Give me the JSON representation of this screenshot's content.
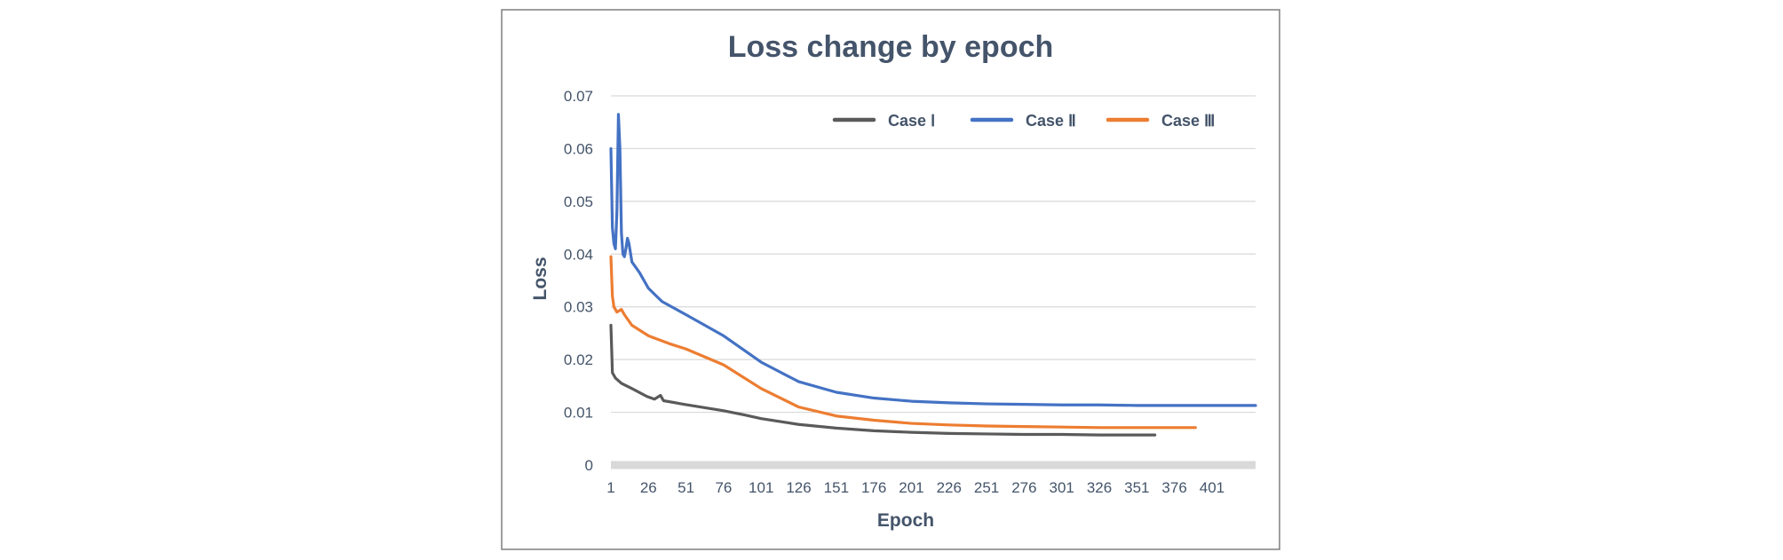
{
  "chart_data": {
    "type": "line",
    "title": "Loss change by epoch",
    "xlabel": "Epoch",
    "ylabel": "Loss",
    "xlim": [
      1,
      430
    ],
    "ylim": [
      0,
      0.07
    ],
    "x_ticks": [
      1,
      26,
      51,
      76,
      101,
      126,
      151,
      176,
      201,
      226,
      251,
      276,
      301,
      326,
      351,
      376,
      401
    ],
    "y_ticks": [
      0,
      0.01,
      0.02,
      0.03,
      0.04,
      0.05,
      0.06,
      0.07
    ],
    "y_tick_labels": [
      "0",
      "0.01",
      "0.02",
      "0.03",
      "0.04",
      "0.05",
      "0.06",
      "0.07"
    ],
    "grid": "horizontal",
    "legend": "top-right",
    "series": [
      {
        "name": "Case Ⅰ",
        "color": "#5a5a5a",
        "points": [
          [
            1,
            0.0265
          ],
          [
            2,
            0.0175
          ],
          [
            4,
            0.0165
          ],
          [
            8,
            0.0155
          ],
          [
            15,
            0.0145
          ],
          [
            25,
            0.013
          ],
          [
            30,
            0.0125
          ],
          [
            34,
            0.0132
          ],
          [
            36,
            0.0122
          ],
          [
            50,
            0.0115
          ],
          [
            76,
            0.0103
          ],
          [
            90,
            0.0095
          ],
          [
            101,
            0.0088
          ],
          [
            126,
            0.0077
          ],
          [
            151,
            0.007
          ],
          [
            176,
            0.0065
          ],
          [
            201,
            0.0062
          ],
          [
            226,
            0.006
          ],
          [
            251,
            0.0059
          ],
          [
            276,
            0.0058
          ],
          [
            301,
            0.0058
          ],
          [
            326,
            0.0057
          ],
          [
            351,
            0.0057
          ],
          [
            363,
            0.0057
          ]
        ]
      },
      {
        "name": "Case Ⅱ",
        "color": "#4472c4",
        "points": [
          [
            1,
            0.06
          ],
          [
            2,
            0.045
          ],
          [
            3,
            0.042
          ],
          [
            4,
            0.041
          ],
          [
            5,
            0.048
          ],
          [
            6,
            0.0665
          ],
          [
            7,
            0.06
          ],
          [
            8,
            0.044
          ],
          [
            9,
            0.04
          ],
          [
            10,
            0.0395
          ],
          [
            11,
            0.041
          ],
          [
            12,
            0.043
          ],
          [
            13,
            0.042
          ],
          [
            15,
            0.0385
          ],
          [
            20,
            0.0365
          ],
          [
            26,
            0.0335
          ],
          [
            35,
            0.031
          ],
          [
            51,
            0.0285
          ],
          [
            76,
            0.0245
          ],
          [
            101,
            0.0195
          ],
          [
            126,
            0.0158
          ],
          [
            151,
            0.0138
          ],
          [
            176,
            0.0127
          ],
          [
            201,
            0.0121
          ],
          [
            226,
            0.0118
          ],
          [
            251,
            0.0116
          ],
          [
            276,
            0.0115
          ],
          [
            301,
            0.0114
          ],
          [
            326,
            0.0114
          ],
          [
            351,
            0.0113
          ],
          [
            376,
            0.0113
          ],
          [
            401,
            0.0113
          ],
          [
            430,
            0.0113
          ]
        ]
      },
      {
        "name": "Case Ⅲ",
        "color": "#ed7d31",
        "points": [
          [
            1,
            0.0395
          ],
          [
            2,
            0.032
          ],
          [
            3,
            0.03
          ],
          [
            5,
            0.029
          ],
          [
            8,
            0.0295
          ],
          [
            10,
            0.0285
          ],
          [
            15,
            0.0265
          ],
          [
            26,
            0.0245
          ],
          [
            40,
            0.023
          ],
          [
            51,
            0.022
          ],
          [
            76,
            0.019
          ],
          [
            101,
            0.0145
          ],
          [
            126,
            0.011
          ],
          [
            151,
            0.0093
          ],
          [
            176,
            0.0085
          ],
          [
            201,
            0.0079
          ],
          [
            226,
            0.0076
          ],
          [
            251,
            0.0074
          ],
          [
            276,
            0.0073
          ],
          [
            301,
            0.0072
          ],
          [
            326,
            0.0071
          ],
          [
            351,
            0.0071
          ],
          [
            376,
            0.0071
          ],
          [
            390,
            0.0071
          ]
        ]
      }
    ]
  }
}
